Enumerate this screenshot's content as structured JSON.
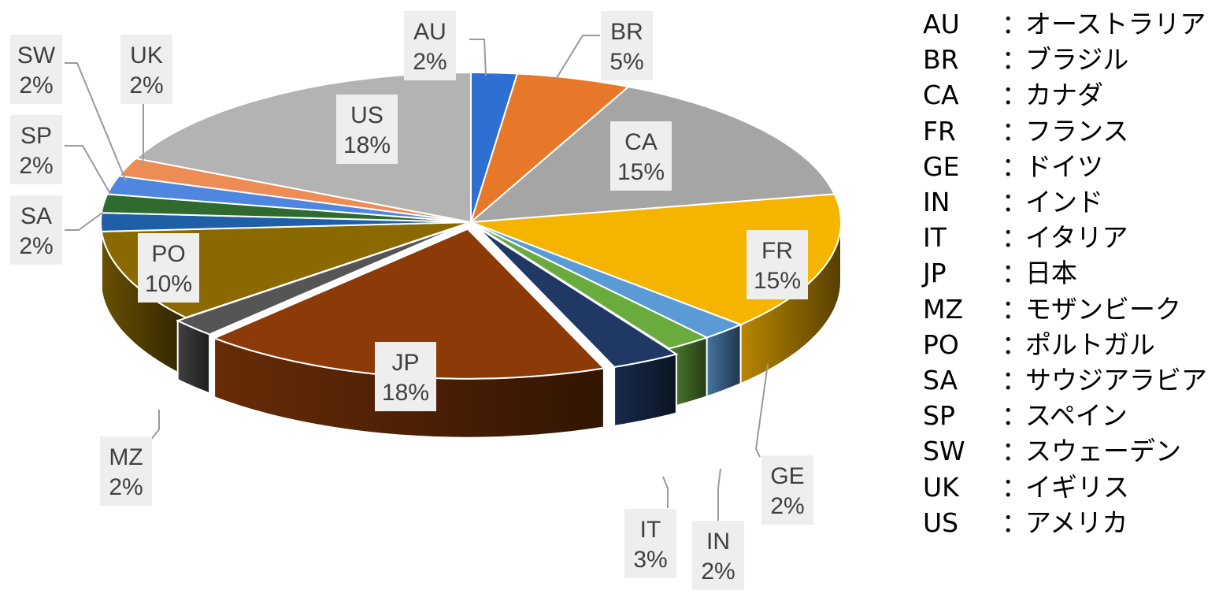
{
  "chart_data": {
    "type": "pie",
    "title": "",
    "style": "3d-exploded",
    "labels": {
      "show": true,
      "format": "code + percent",
      "leader_lines": true
    },
    "slices": [
      {
        "code": "AU",
        "label": "AU",
        "pct_label": "2%",
        "value": 2,
        "color": "#2e6fd1"
      },
      {
        "code": "BR",
        "label": "BR",
        "pct_label": "5%",
        "value": 5,
        "color": "#e7782a"
      },
      {
        "code": "CA",
        "label": "CA",
        "pct_label": "15%",
        "value": 15,
        "color": "#a5a5a5"
      },
      {
        "code": "FR",
        "label": "FR",
        "pct_label": "15%",
        "value": 15,
        "color": "#f5b400"
      },
      {
        "code": "GE",
        "label": "GE",
        "pct_label": "2%",
        "value": 2,
        "color": "#5b9bd5"
      },
      {
        "code": "IN",
        "label": "IN",
        "pct_label": "2%",
        "value": 2,
        "color": "#6aab3e"
      },
      {
        "code": "IT",
        "label": "IT",
        "pct_label": "3%",
        "value": 3,
        "color": "#1f3864"
      },
      {
        "code": "JP",
        "label": "JP",
        "pct_label": "18%",
        "value": 18,
        "color": "#8b3a08"
      },
      {
        "code": "MZ",
        "label": "MZ",
        "pct_label": "2%",
        "value": 2,
        "color": "#555555"
      },
      {
        "code": "PO",
        "label": "PO",
        "pct_label": "10%",
        "value": 10,
        "color": "#8a6a00"
      },
      {
        "code": "SA",
        "label": "SA",
        "pct_label": "2%",
        "value": 2,
        "color": "#1f5fa8"
      },
      {
        "code": "SP",
        "label": "SP",
        "pct_label": "2%",
        "value": 2,
        "color": "#2f6b2f"
      },
      {
        "code": "SW",
        "label": "SW",
        "pct_label": "2%",
        "value": 2,
        "color": "#4f86e0"
      },
      {
        "code": "UK",
        "label": "UK",
        "pct_label": "2%",
        "value": 2,
        "color": "#ee8c55"
      },
      {
        "code": "US",
        "label": "US",
        "pct_label": "18%",
        "value": 18,
        "color": "#b3b3b3"
      }
    ]
  },
  "legend": {
    "separator": "：",
    "items": [
      {
        "code": "AU",
        "name": "オーストラリア"
      },
      {
        "code": "BR",
        "name": "ブラジル"
      },
      {
        "code": "CA",
        "name": "カナダ"
      },
      {
        "code": "FR",
        "name": "フランス"
      },
      {
        "code": "GE",
        "name": "ドイツ"
      },
      {
        "code": "IN",
        "name": "インド"
      },
      {
        "code": "IT",
        "name": "イタリア"
      },
      {
        "code": "JP",
        "name": "日本"
      },
      {
        "code": "MZ",
        "name": "モザンビーク"
      },
      {
        "code": "PO",
        "name": "ポルトガル"
      },
      {
        "code": "SA",
        "name": "サウジアラビア"
      },
      {
        "code": "SP",
        "name": "スペイン"
      },
      {
        "code": "SW",
        "name": "スウェーデン"
      },
      {
        "code": "UK",
        "name": "イギリス"
      },
      {
        "code": "US",
        "name": "アメリカ"
      }
    ]
  }
}
